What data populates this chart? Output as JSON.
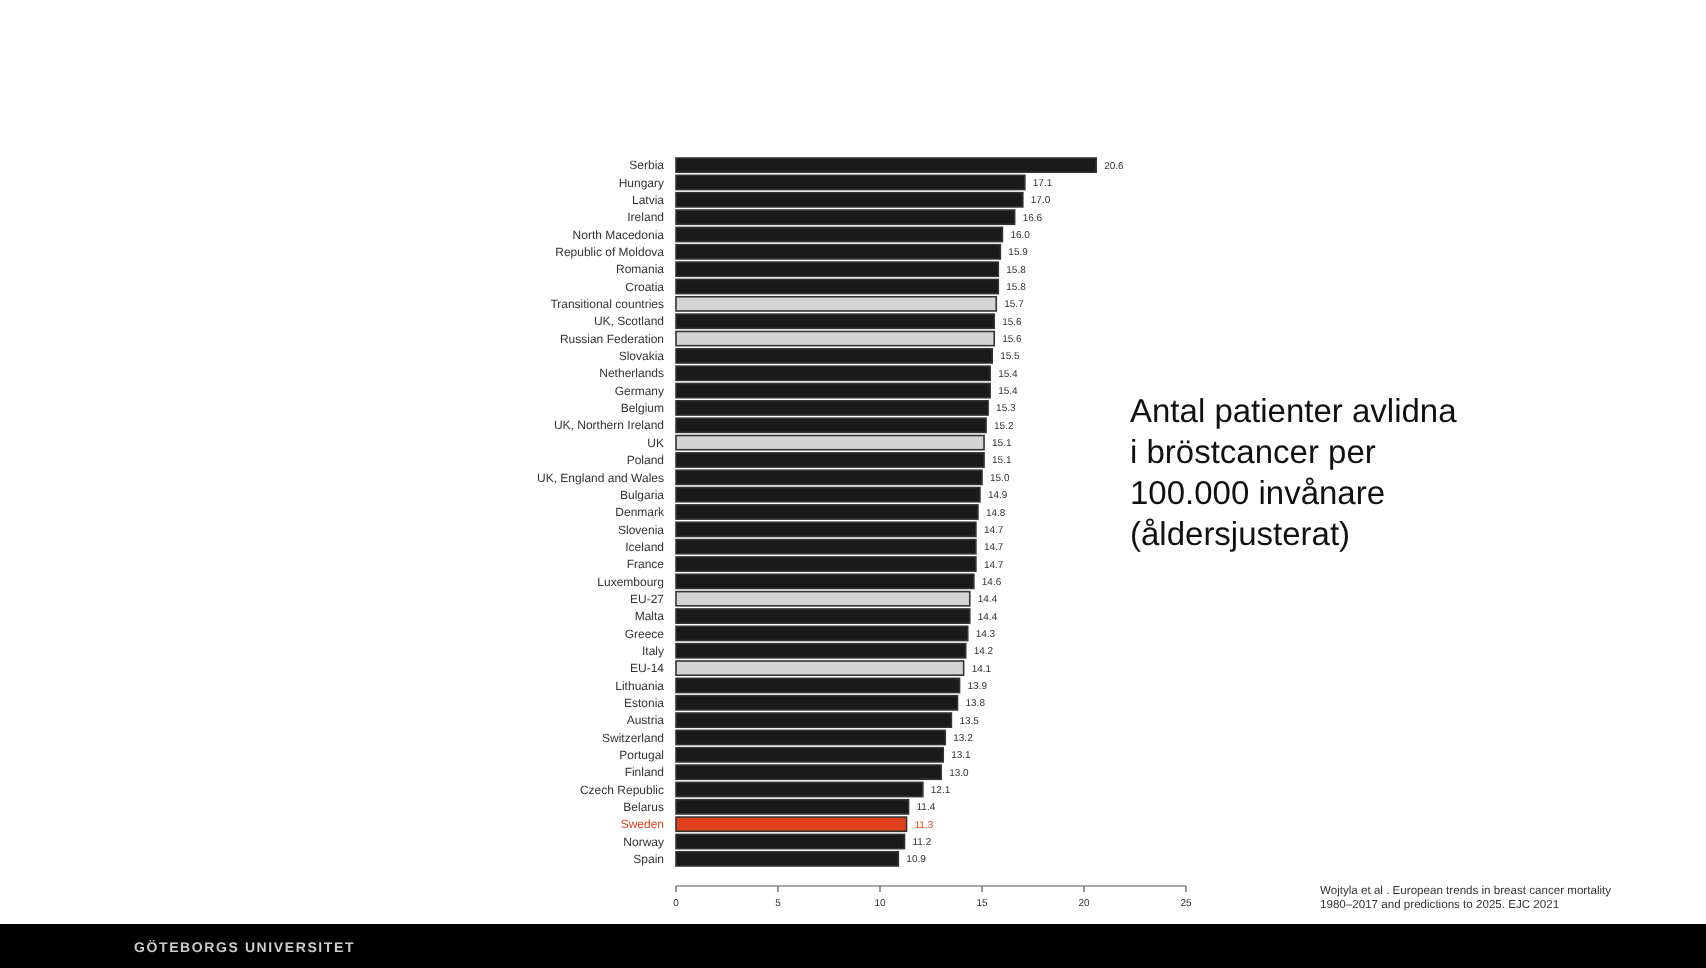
{
  "chart_data": {
    "type": "bar",
    "orientation": "horizontal",
    "title": "Antal patienter avlidna i bröstcancer per 100.000 invånare (åldersjusterat)",
    "categories": [
      "Serbia",
      "Hungary",
      "Latvia",
      "Ireland",
      "North Macedonia",
      "Republic of Moldova",
      "Romania",
      "Croatia",
      "Transitional countries",
      "UK, Scotland",
      "Russian Federation",
      "Slovakia",
      "Netherlands",
      "Germany",
      "Belgium",
      "UK, Northern Ireland",
      "UK",
      "Poland",
      "UK, England and Wales",
      "Bulgaria",
      "Denmark",
      "Slovenia",
      "Iceland",
      "France",
      "Luxembourg",
      "EU-27",
      "Malta",
      "Greece",
      "Italy",
      "EU-14",
      "Lithuania",
      "Estonia",
      "Austria",
      "Switzerland",
      "Portugal",
      "Finland",
      "Czech Republic",
      "Belarus",
      "Sweden",
      "Norway",
      "Spain"
    ],
    "values": [
      20.6,
      17.1,
      17.0,
      16.6,
      16.0,
      15.9,
      15.8,
      15.8,
      15.7,
      15.6,
      15.6,
      15.5,
      15.4,
      15.4,
      15.3,
      15.2,
      15.1,
      15.1,
      15.0,
      14.9,
      14.8,
      14.7,
      14.7,
      14.7,
      14.6,
      14.4,
      14.4,
      14.3,
      14.2,
      14.1,
      13.9,
      13.8,
      13.5,
      13.2,
      13.1,
      13.0,
      12.1,
      11.4,
      11.3,
      11.2,
      10.9
    ],
    "value_labels": [
      "20.6",
      "17.1",
      "17.0",
      "16.6",
      "16.0",
      "15.9",
      "15.8",
      "15.8",
      "15.7",
      "15.6",
      "15.6",
      "15.5",
      "15.4",
      "15.4",
      "15.3",
      "15.2",
      "15.1",
      "15.1",
      "15.0",
      "14.9",
      "14.8",
      "14.7",
      "14.7",
      "14.7",
      "14.6",
      "14.4",
      "14.4",
      "14.3",
      "14.2",
      "14.1",
      "13.9",
      "13.8",
      "13.5",
      "13.2",
      "13.1",
      "13.0",
      "12.1",
      "11.4",
      "11.3",
      "11.2",
      "10.9"
    ],
    "colors": [
      "#1a1a1a",
      "#1a1a1a",
      "#1a1a1a",
      "#1a1a1a",
      "#1a1a1a",
      "#1a1a1a",
      "#1a1a1a",
      "#1a1a1a",
      "#d4d4d4",
      "#1a1a1a",
      "#d4d4d4",
      "#1a1a1a",
      "#1a1a1a",
      "#1a1a1a",
      "#1a1a1a",
      "#1a1a1a",
      "#d4d4d4",
      "#1a1a1a",
      "#1a1a1a",
      "#1a1a1a",
      "#1a1a1a",
      "#1a1a1a",
      "#1a1a1a",
      "#1a1a1a",
      "#1a1a1a",
      "#d4d4d4",
      "#1a1a1a",
      "#1a1a1a",
      "#1a1a1a",
      "#d4d4d4",
      "#1a1a1a",
      "#1a1a1a",
      "#1a1a1a",
      "#1a1a1a",
      "#1a1a1a",
      "#1a1a1a",
      "#1a1a1a",
      "#1a1a1a",
      "#e0401c",
      "#1a1a1a",
      "#1a1a1a"
    ],
    "xlim": [
      0,
      25
    ],
    "xticks": [
      0,
      5,
      10,
      15,
      20,
      25
    ],
    "grid": false,
    "annotations": [
      "Wojtyla et al . European trends in breast cancer mortality 1980–2017 and predictions to 2025. EJC 2021",
      "GÖTEBORGS UNIVERSITET"
    ]
  }
}
